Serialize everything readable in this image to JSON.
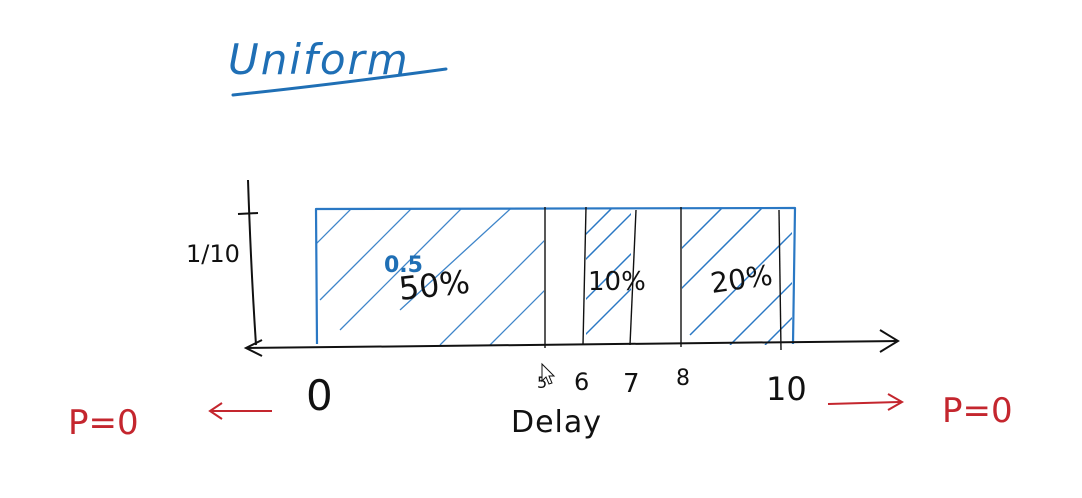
{
  "title": "Uniform",
  "y_axis": {
    "tick_label": "1/10"
  },
  "x_axis": {
    "label": "Delay",
    "ticks": [
      "0",
      "5",
      "6",
      "7",
      "8",
      "10"
    ]
  },
  "regions": {
    "first": {
      "value_label": "0.5",
      "percent_label": "50%"
    },
    "middle": {
      "percent_label": "10%"
    },
    "last": {
      "percent_label": "20%"
    }
  },
  "annotations": {
    "left": "P=0",
    "right": "P=0"
  },
  "colors": {
    "ink": "#111111",
    "title": "#1f6fb5",
    "box": "#2a78c4",
    "hatch": "#2a78c4",
    "probability_note": "#c4262e"
  },
  "cursor": "arrow-cursor-icon"
}
